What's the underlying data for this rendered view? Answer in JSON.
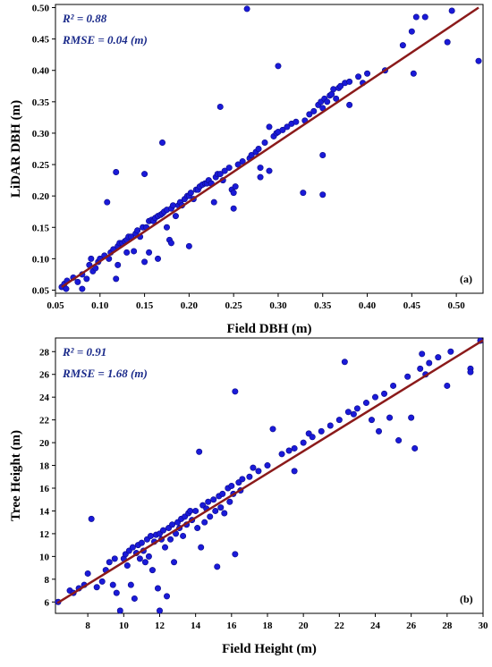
{
  "colors": {
    "points": "#1a1ad8",
    "point_stroke": "#0a0a8a",
    "fit_line": "#8b1a1a",
    "annotation": "#1a2a8a"
  },
  "chart_data": [
    {
      "type": "scatter",
      "panel_label": "(a)",
      "xlabel": "Field DBH (m)",
      "ylabel": "LiDAR DBH (m)",
      "r2": "R² = 0.88",
      "rmse": "RMSE = 0.04 (m)",
      "xlim": [
        0.05,
        0.53
      ],
      "ylim": [
        0.045,
        0.505
      ],
      "xticks": [
        0.05,
        0.1,
        0.15,
        0.2,
        0.25,
        0.3,
        0.35,
        0.4,
        0.45,
        0.5
      ],
      "yticks": [
        0.05,
        0.1,
        0.15,
        0.2,
        0.25,
        0.3,
        0.35,
        0.4,
        0.45,
        0.5
      ],
      "fit_line": [
        [
          0.057,
          0.055
        ],
        [
          0.525,
          0.5
        ]
      ],
      "points": [
        [
          0.057,
          0.055
        ],
        [
          0.06,
          0.06
        ],
        [
          0.062,
          0.052
        ],
        [
          0.063,
          0.065
        ],
        [
          0.07,
          0.07
        ],
        [
          0.075,
          0.063
        ],
        [
          0.08,
          0.075
        ],
        [
          0.08,
          0.052
        ],
        [
          0.085,
          0.068
        ],
        [
          0.088,
          0.09
        ],
        [
          0.09,
          0.1
        ],
        [
          0.092,
          0.08
        ],
        [
          0.095,
          0.085
        ],
        [
          0.098,
          0.095
        ],
        [
          0.1,
          0.1
        ],
        [
          0.105,
          0.105
        ],
        [
          0.108,
          0.19
        ],
        [
          0.11,
          0.1
        ],
        [
          0.112,
          0.11
        ],
        [
          0.115,
          0.115
        ],
        [
          0.118,
          0.238
        ],
        [
          0.118,
          0.068
        ],
        [
          0.12,
          0.09
        ],
        [
          0.12,
          0.12
        ],
        [
          0.122,
          0.125
        ],
        [
          0.125,
          0.125
        ],
        [
          0.128,
          0.128
        ],
        [
          0.13,
          0.13
        ],
        [
          0.13,
          0.11
        ],
        [
          0.132,
          0.135
        ],
        [
          0.135,
          0.135
        ],
        [
          0.138,
          0.112
        ],
        [
          0.14,
          0.14
        ],
        [
          0.142,
          0.145
        ],
        [
          0.145,
          0.135
        ],
        [
          0.148,
          0.15
        ],
        [
          0.15,
          0.235
        ],
        [
          0.15,
          0.095
        ],
        [
          0.152,
          0.15
        ],
        [
          0.155,
          0.16
        ],
        [
          0.155,
          0.11
        ],
        [
          0.158,
          0.162
        ],
        [
          0.16,
          0.16
        ],
        [
          0.162,
          0.165
        ],
        [
          0.165,
          0.168
        ],
        [
          0.165,
          0.1
        ],
        [
          0.168,
          0.17
        ],
        [
          0.17,
          0.285
        ],
        [
          0.17,
          0.172
        ],
        [
          0.172,
          0.175
        ],
        [
          0.175,
          0.15
        ],
        [
          0.175,
          0.178
        ],
        [
          0.178,
          0.13
        ],
        [
          0.18,
          0.18
        ],
        [
          0.18,
          0.125
        ],
        [
          0.182,
          0.185
        ],
        [
          0.185,
          0.168
        ],
        [
          0.188,
          0.185
        ],
        [
          0.19,
          0.19
        ],
        [
          0.192,
          0.185
        ],
        [
          0.195,
          0.195
        ],
        [
          0.198,
          0.2
        ],
        [
          0.2,
          0.2
        ],
        [
          0.2,
          0.12
        ],
        [
          0.202,
          0.205
        ],
        [
          0.205,
          0.195
        ],
        [
          0.208,
          0.21
        ],
        [
          0.21,
          0.21
        ],
        [
          0.212,
          0.215
        ],
        [
          0.215,
          0.218
        ],
        [
          0.218,
          0.22
        ],
        [
          0.22,
          0.22
        ],
        [
          0.222,
          0.225
        ],
        [
          0.225,
          0.22
        ],
        [
          0.228,
          0.19
        ],
        [
          0.23,
          0.23
        ],
        [
          0.232,
          0.235
        ],
        [
          0.235,
          0.342
        ],
        [
          0.235,
          0.235
        ],
        [
          0.238,
          0.225
        ],
        [
          0.24,
          0.24
        ],
        [
          0.245,
          0.245
        ],
        [
          0.248,
          0.21
        ],
        [
          0.25,
          0.205
        ],
        [
          0.25,
          0.18
        ],
        [
          0.252,
          0.215
        ],
        [
          0.255,
          0.25
        ],
        [
          0.26,
          0.255
        ],
        [
          0.265,
          0.498
        ],
        [
          0.268,
          0.26
        ],
        [
          0.27,
          0.265
        ],
        [
          0.275,
          0.27
        ],
        [
          0.278,
          0.275
        ],
        [
          0.28,
          0.245
        ],
        [
          0.28,
          0.23
        ],
        [
          0.285,
          0.285
        ],
        [
          0.29,
          0.31
        ],
        [
          0.29,
          0.24
        ],
        [
          0.295,
          0.295
        ],
        [
          0.298,
          0.3
        ],
        [
          0.3,
          0.407
        ],
        [
          0.3,
          0.302
        ],
        [
          0.305,
          0.305
        ],
        [
          0.31,
          0.31
        ],
        [
          0.315,
          0.315
        ],
        [
          0.32,
          0.318
        ],
        [
          0.328,
          0.205
        ],
        [
          0.33,
          0.32
        ],
        [
          0.335,
          0.33
        ],
        [
          0.34,
          0.335
        ],
        [
          0.345,
          0.345
        ],
        [
          0.348,
          0.35
        ],
        [
          0.35,
          0.34
        ],
        [
          0.35,
          0.265
        ],
        [
          0.35,
          0.202
        ],
        [
          0.352,
          0.355
        ],
        [
          0.355,
          0.35
        ],
        [
          0.358,
          0.36
        ],
        [
          0.36,
          0.362
        ],
        [
          0.362,
          0.37
        ],
        [
          0.365,
          0.355
        ],
        [
          0.368,
          0.372
        ],
        [
          0.37,
          0.375
        ],
        [
          0.375,
          0.38
        ],
        [
          0.38,
          0.345
        ],
        [
          0.38,
          0.382
        ],
        [
          0.39,
          0.39
        ],
        [
          0.395,
          0.38
        ],
        [
          0.4,
          0.395
        ],
        [
          0.42,
          0.4
        ],
        [
          0.44,
          0.44
        ],
        [
          0.45,
          0.462
        ],
        [
          0.452,
          0.395
        ],
        [
          0.455,
          0.485
        ],
        [
          0.465,
          0.485
        ],
        [
          0.49,
          0.445
        ],
        [
          0.495,
          0.495
        ],
        [
          0.525,
          0.415
        ]
      ]
    },
    {
      "type": "scatter",
      "panel_label": "(b)",
      "xlabel": "Field Height (m)",
      "ylabel": "Tree Height (m)",
      "r2": "R² = 0.91",
      "rmse": "RMSE = 1.68 (m)",
      "xlim": [
        6.2,
        30.0
      ],
      "ylim": [
        5.0,
        29.2
      ],
      "xticks": [
        8,
        10,
        12,
        14,
        16,
        18,
        20,
        22,
        24,
        26,
        28,
        30
      ],
      "yticks": [
        6,
        8,
        10,
        12,
        14,
        16,
        18,
        20,
        22,
        24,
        26,
        28
      ],
      "fit_line": [
        [
          6.3,
          5.9
        ],
        [
          30.0,
          29.0
        ]
      ],
      "points": [
        [
          6.3,
          6.0
        ],
        [
          7.0,
          7.0
        ],
        [
          7.2,
          6.8
        ],
        [
          7.5,
          7.2
        ],
        [
          7.8,
          7.5
        ],
        [
          8.0,
          8.5
        ],
        [
          8.2,
          13.3
        ],
        [
          8.5,
          7.3
        ],
        [
          8.8,
          7.8
        ],
        [
          9.0,
          8.8
        ],
        [
          9.2,
          9.5
        ],
        [
          9.4,
          7.5
        ],
        [
          9.5,
          9.8
        ],
        [
          9.6,
          6.8
        ],
        [
          9.8,
          5.0
        ],
        [
          10.0,
          9.8
        ],
        [
          10.1,
          10.2
        ],
        [
          10.2,
          9.2
        ],
        [
          10.3,
          10.5
        ],
        [
          10.4,
          7.5
        ],
        [
          10.5,
          10.8
        ],
        [
          10.6,
          6.3
        ],
        [
          10.7,
          10.3
        ],
        [
          10.8,
          11.0
        ],
        [
          10.9,
          9.8
        ],
        [
          11.0,
          11.2
        ],
        [
          11.1,
          10.5
        ],
        [
          11.2,
          9.5
        ],
        [
          11.3,
          11.5
        ],
        [
          11.4,
          10.0
        ],
        [
          11.5,
          11.8
        ],
        [
          11.6,
          8.8
        ],
        [
          11.7,
          11.3
        ],
        [
          11.8,
          11.9
        ],
        [
          11.9,
          7.2
        ],
        [
          12.0,
          12.0
        ],
        [
          12.0,
          5.0
        ],
        [
          12.1,
          11.5
        ],
        [
          12.2,
          12.3
        ],
        [
          12.3,
          10.8
        ],
        [
          12.4,
          6.5
        ],
        [
          12.5,
          12.5
        ],
        [
          12.6,
          11.5
        ],
        [
          12.7,
          12.8
        ],
        [
          12.8,
          9.5
        ],
        [
          12.9,
          12.0
        ],
        [
          13.0,
          13.0
        ],
        [
          13.1,
          12.5
        ],
        [
          13.2,
          13.3
        ],
        [
          13.3,
          11.8
        ],
        [
          13.4,
          13.5
        ],
        [
          13.5,
          12.8
        ],
        [
          13.6,
          13.8
        ],
        [
          13.7,
          14.0
        ],
        [
          13.8,
          13.2
        ],
        [
          14.0,
          14.0
        ],
        [
          14.1,
          12.5
        ],
        [
          14.2,
          19.2
        ],
        [
          14.3,
          10.8
        ],
        [
          14.4,
          14.5
        ],
        [
          14.5,
          13.0
        ],
        [
          14.6,
          14.2
        ],
        [
          14.7,
          14.8
        ],
        [
          14.8,
          13.5
        ],
        [
          15.0,
          15.0
        ],
        [
          15.1,
          14.0
        ],
        [
          15.2,
          9.1
        ],
        [
          15.3,
          15.3
        ],
        [
          15.4,
          14.3
        ],
        [
          15.5,
          15.5
        ],
        [
          15.6,
          13.8
        ],
        [
          15.8,
          16.0
        ],
        [
          15.9,
          14.8
        ],
        [
          16.0,
          16.2
        ],
        [
          16.1,
          15.5
        ],
        [
          16.2,
          24.5
        ],
        [
          16.2,
          10.2
        ],
        [
          16.4,
          16.5
        ],
        [
          16.5,
          15.8
        ],
        [
          16.6,
          16.8
        ],
        [
          17.0,
          17.0
        ],
        [
          17.2,
          17.8
        ],
        [
          17.5,
          17.5
        ],
        [
          18.0,
          18.0
        ],
        [
          18.3,
          21.2
        ],
        [
          18.8,
          19.0
        ],
        [
          19.2,
          19.3
        ],
        [
          19.5,
          19.5
        ],
        [
          19.5,
          17.5
        ],
        [
          20.0,
          20.0
        ],
        [
          20.3,
          20.8
        ],
        [
          20.5,
          20.5
        ],
        [
          21.0,
          21.0
        ],
        [
          21.5,
          21.5
        ],
        [
          22.0,
          22.0
        ],
        [
          22.3,
          27.1
        ],
        [
          22.5,
          22.7
        ],
        [
          22.8,
          22.5
        ],
        [
          23.0,
          23.0
        ],
        [
          23.5,
          23.5
        ],
        [
          23.8,
          22.0
        ],
        [
          24.0,
          24.0
        ],
        [
          24.2,
          21.0
        ],
        [
          24.5,
          24.3
        ],
        [
          24.8,
          22.2
        ],
        [
          25.0,
          25.0
        ],
        [
          25.3,
          20.2
        ],
        [
          25.8,
          25.8
        ],
        [
          26.0,
          22.2
        ],
        [
          26.2,
          19.5
        ],
        [
          26.5,
          26.5
        ],
        [
          26.6,
          27.8
        ],
        [
          26.8,
          26.0
        ],
        [
          27.0,
          27.0
        ],
        [
          27.5,
          27.5
        ],
        [
          28.0,
          25.0
        ],
        [
          28.2,
          28.0
        ],
        [
          29.3,
          26.5
        ],
        [
          29.3,
          26.2
        ],
        [
          30.0,
          29.5
        ]
      ]
    }
  ]
}
